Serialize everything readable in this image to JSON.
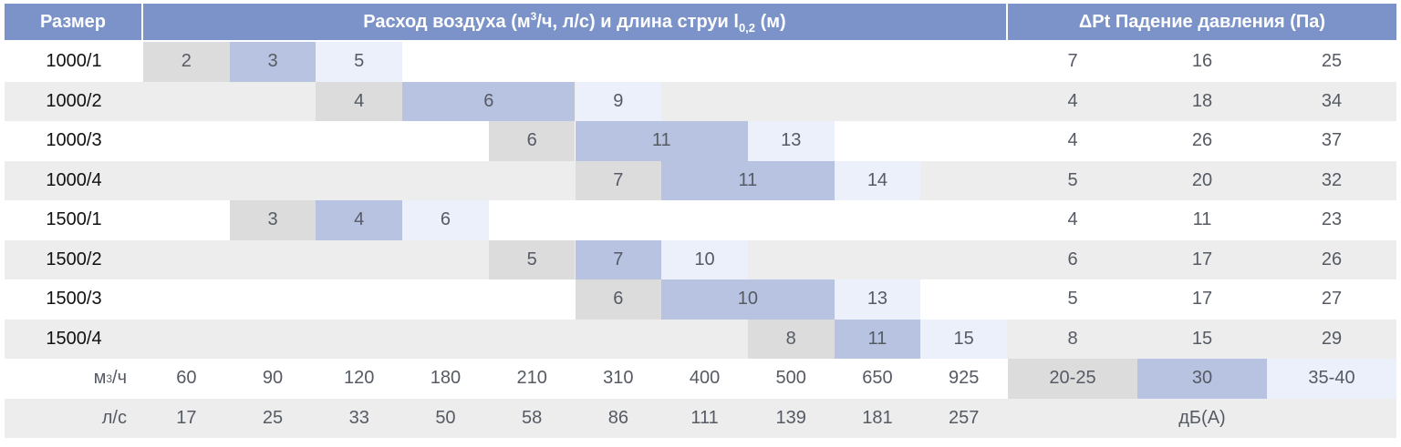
{
  "header": {
    "size_label": "Размер",
    "flow_title_prefix": "Расход воздуха (м",
    "flow_title_sup": "3",
    "flow_title_mid": "/ч, л/с) и длина струи l",
    "flow_title_sub": "0,2",
    "flow_title_suffix": " (м)",
    "pressure_title": "ΔPt Падение давления (Па)"
  },
  "colors": {
    "header_bg": "#7b93c8",
    "stripe": "#ededee",
    "shade_gray": "#dcdcdd",
    "shade_blue": "#b8c3e1",
    "shade_light": "#ecf0fa",
    "row_text": "#111111",
    "value_text": "#555a63"
  },
  "rows": [
    {
      "label": "1000/1",
      "jets": [
        {
          "start": 0,
          "span": 1,
          "value": "2",
          "shade": "gray"
        },
        {
          "start": 1,
          "span": 1,
          "value": "3",
          "shade": "blue"
        },
        {
          "start": 2,
          "span": 1,
          "value": "5",
          "shade": "light"
        }
      ],
      "pressure": [
        "7",
        "16",
        "25"
      ]
    },
    {
      "label": "1000/2",
      "jets": [
        {
          "start": 2,
          "span": 1,
          "value": "4",
          "shade": "gray"
        },
        {
          "start": 3,
          "span": 2,
          "value": "6",
          "shade": "blue"
        },
        {
          "start": 5,
          "span": 1,
          "value": "9",
          "shade": "light"
        }
      ],
      "pressure": [
        "4",
        "18",
        "34"
      ]
    },
    {
      "label": "1000/3",
      "jets": [
        {
          "start": 4,
          "span": 1,
          "value": "6",
          "shade": "gray"
        },
        {
          "start": 5,
          "span": 2,
          "value": "11",
          "shade": "blue"
        },
        {
          "start": 7,
          "span": 1,
          "value": "13",
          "shade": "light"
        }
      ],
      "pressure": [
        "4",
        "26",
        "37"
      ]
    },
    {
      "label": "1000/4",
      "jets": [
        {
          "start": 5,
          "span": 1,
          "value": "7",
          "shade": "gray"
        },
        {
          "start": 6,
          "span": 2,
          "value": "11",
          "shade": "blue"
        },
        {
          "start": 8,
          "span": 1,
          "value": "14",
          "shade": "light"
        }
      ],
      "pressure": [
        "5",
        "20",
        "32"
      ]
    },
    {
      "label": "1500/1",
      "jets": [
        {
          "start": 1,
          "span": 1,
          "value": "3",
          "shade": "gray"
        },
        {
          "start": 2,
          "span": 1,
          "value": "4",
          "shade": "blue"
        },
        {
          "start": 3,
          "span": 1,
          "value": "6",
          "shade": "light"
        }
      ],
      "pressure": [
        "4",
        "11",
        "23"
      ]
    },
    {
      "label": "1500/2",
      "jets": [
        {
          "start": 4,
          "span": 1,
          "value": "5",
          "shade": "gray"
        },
        {
          "start": 5,
          "span": 1,
          "value": "7",
          "shade": "blue"
        },
        {
          "start": 6,
          "span": 1,
          "value": "10",
          "shade": "light"
        }
      ],
      "pressure": [
        "6",
        "17",
        "26"
      ]
    },
    {
      "label": "1500/3",
      "jets": [
        {
          "start": 5,
          "span": 1,
          "value": "6",
          "shade": "gray"
        },
        {
          "start": 6,
          "span": 2,
          "value": "10",
          "shade": "blue"
        },
        {
          "start": 8,
          "span": 1,
          "value": "13",
          "shade": "light"
        }
      ],
      "pressure": [
        "5",
        "17",
        "27"
      ]
    },
    {
      "label": "1500/4",
      "jets": [
        {
          "start": 7,
          "span": 1,
          "value": "8",
          "shade": "gray"
        },
        {
          "start": 8,
          "span": 1,
          "value": "11",
          "shade": "blue"
        },
        {
          "start": 9,
          "span": 1,
          "value": "15",
          "shade": "light"
        }
      ],
      "pressure": [
        "8",
        "15",
        "29"
      ]
    }
  ],
  "footer": {
    "m3h_label_prefix": "м",
    "m3h_label_sup": "3",
    "m3h_label_suffix": "/ч",
    "m3h_values": [
      "60",
      "90",
      "120",
      "180",
      "210",
      "310",
      "400",
      "500",
      "650",
      "925"
    ],
    "noise": [
      {
        "value": "20-25",
        "shade": "gray"
      },
      {
        "value": "30",
        "shade": "blue"
      },
      {
        "value": "35-40",
        "shade": "light"
      }
    ],
    "ls_label": "л/с",
    "ls_values": [
      "17",
      "25",
      "33",
      "50",
      "58",
      "86",
      "111",
      "139",
      "181",
      "257"
    ],
    "noise_unit": "дБ(А)"
  }
}
